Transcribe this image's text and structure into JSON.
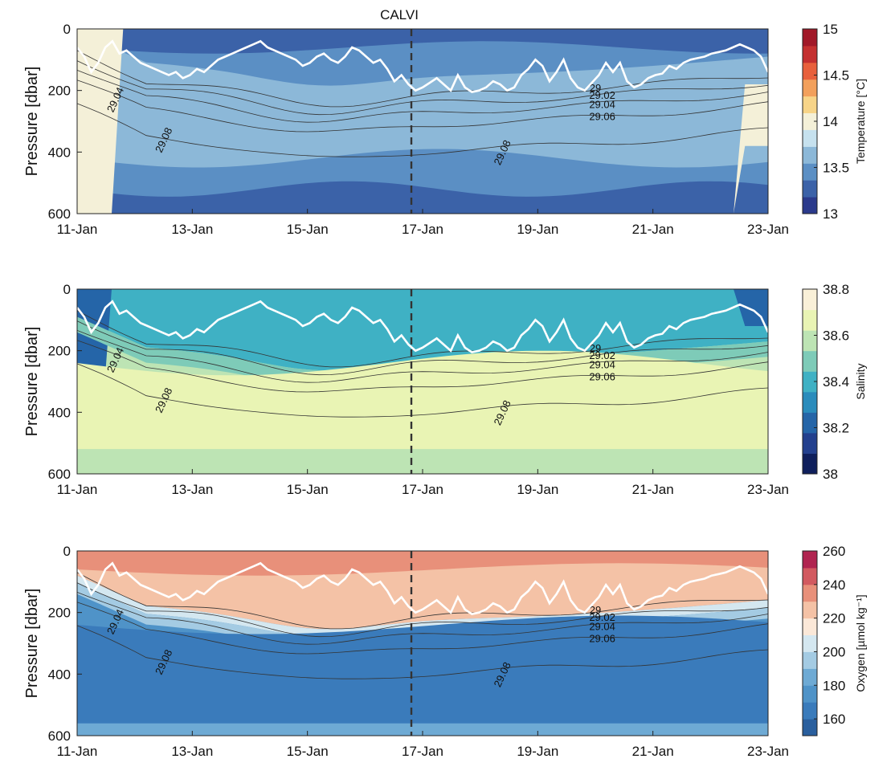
{
  "title": "CALVI",
  "chart_data": [
    {
      "type": "heatmap",
      "variable": "Temperature",
      "colorbar_label": "Temperature [°C]",
      "colorbar_levels": [
        13,
        13.25,
        13.5,
        13.75,
        14,
        14.25,
        14.5,
        14.75,
        15
      ],
      "colorbar_ticks": [
        "13",
        "13.5",
        "14",
        "14.5",
        "15"
      ],
      "colors": [
        "#2b3a8c",
        "#3b62a8",
        "#5b8fc4",
        "#8cb8d8",
        "#c6e1ee",
        "#f4f0d8",
        "#f7d488",
        "#f2a05c",
        "#e8603c",
        "#c43030",
        "#a11828"
      ],
      "ylabel": "Pressure [dbar]",
      "yticks": [
        "0",
        "200",
        "400",
        "600"
      ],
      "ylim": [
        0,
        600
      ],
      "xticks": [
        "11-Jan",
        "13-Jan",
        "15-Jan",
        "17-Jan",
        "19-Jan",
        "21-Jan",
        "23-Jan"
      ],
      "isopycnal_labels": [
        "29",
        "29.02",
        "29.04",
        "29.06",
        "29.08"
      ]
    },
    {
      "type": "heatmap",
      "variable": "Salinity",
      "colorbar_label": "Salinity",
      "colorbar_levels": [
        38,
        38.1,
        38.2,
        38.3,
        38.4,
        38.5,
        38.6,
        38.7,
        38.8
      ],
      "colorbar_ticks": [
        "38",
        "38.2",
        "38.4",
        "38.6",
        "38.8"
      ],
      "colors": [
        "#0f1f5c",
        "#23408e",
        "#2565a8",
        "#2a8cbc",
        "#3fb1c4",
        "#7ecbb8",
        "#bde4b4",
        "#e9f4b4",
        "#f9f0d8"
      ],
      "ylabel": "Pressure [dbar]",
      "yticks": [
        "0",
        "200",
        "400",
        "600"
      ],
      "ylim": [
        0,
        600
      ],
      "xticks": [
        "11-Jan",
        "13-Jan",
        "15-Jan",
        "17-Jan",
        "19-Jan",
        "21-Jan",
        "23-Jan"
      ],
      "isopycnal_labels": [
        "29",
        "29.02",
        "29.04",
        "29.06",
        "29.08"
      ]
    },
    {
      "type": "heatmap",
      "variable": "Oxygen",
      "colorbar_label": "Oxygen [µmol kg⁻¹]",
      "colorbar_levels": [
        150,
        160,
        170,
        180,
        190,
        200,
        210,
        220,
        230,
        240,
        250,
        260
      ],
      "colorbar_ticks": [
        "160",
        "180",
        "200",
        "220",
        "240",
        "260"
      ],
      "colors": [
        "#2a5f9e",
        "#3a7bbb",
        "#4f93c8",
        "#6eaad4",
        "#a4cbe3",
        "#d4e7f0",
        "#fbe8d8",
        "#f4c2a6",
        "#e8907a",
        "#d25a60",
        "#b02450"
      ],
      "ylabel": "Pressure [dbar]",
      "yticks": [
        "0",
        "200",
        "400",
        "600"
      ],
      "ylim": [
        0,
        600
      ],
      "xticks": [
        "11-Jan",
        "13-Jan",
        "15-Jan",
        "17-Jan",
        "19-Jan",
        "21-Jan",
        "23-Jan"
      ],
      "isopycnal_labels": [
        "29",
        "29.02",
        "29.04",
        "29.06",
        "29.08"
      ]
    }
  ]
}
